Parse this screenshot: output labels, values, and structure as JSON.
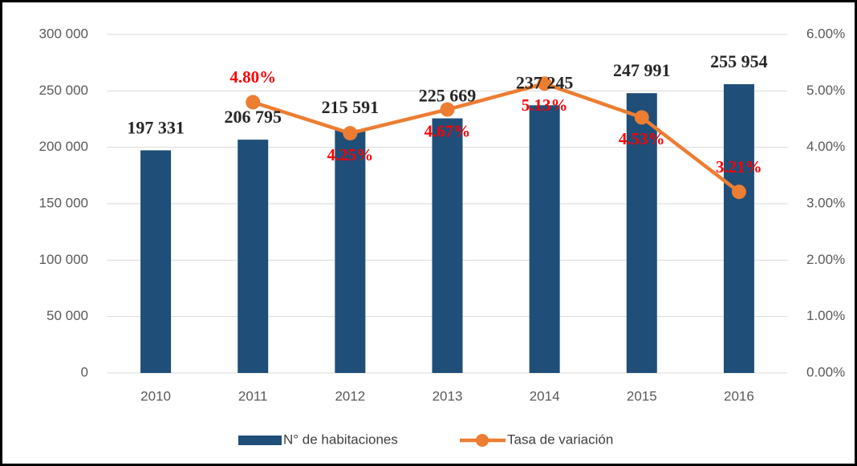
{
  "chart_data": {
    "type": "bar",
    "categories": [
      "2010",
      "2011",
      "2012",
      "2013",
      "2014",
      "2015",
      "2016"
    ],
    "series": [
      {
        "name": "N° de habitaciones",
        "color": "#1f4e79",
        "type": "bar",
        "values": [
          197331,
          206795,
          215591,
          225669,
          237245,
          247991,
          255954
        ],
        "value_labels": [
          "197 331",
          "206 795",
          "215 591",
          "225 669",
          "237 245",
          "247 991",
          "255 954"
        ]
      },
      {
        "name": "Tasa de variación",
        "color": "#ed7d31",
        "type": "line",
        "axis": "y2",
        "values": [
          null,
          4.8,
          4.25,
          4.67,
          5.13,
          4.53,
          3.21
        ],
        "value_labels": [
          null,
          "4.80%",
          "4.25%",
          "4.67%",
          "5.13%",
          "4.53%",
          "3.21%"
        ]
      }
    ],
    "ylim": [
      0,
      300000
    ],
    "yticks": [
      0,
      {
        "value": 50000,
        "label": "50 000"
      },
      {
        "value": 100000,
        "label": "100 000"
      },
      {
        "value": 150000,
        "label": "150 000"
      },
      {
        "value": 200000,
        "label": "200 000"
      },
      {
        "value": 250000,
        "label": "250 000"
      },
      {
        "value": 300000,
        "label": "300 000"
      }
    ],
    "y2lim": [
      0,
      6
    ],
    "y2ticks": [
      {
        "value": 0,
        "label": "0.00%"
      },
      {
        "value": 1,
        "label": "1.00%"
      },
      {
        "value": 2,
        "label": "2.00%"
      },
      {
        "value": 3,
        "label": "3.00%"
      },
      {
        "value": 4,
        "label": "4.00%"
      },
      {
        "value": 5,
        "label": "5.00%"
      },
      {
        "value": 6,
        "label": "6.00%"
      }
    ],
    "grid": true,
    "legend": "bottom"
  }
}
